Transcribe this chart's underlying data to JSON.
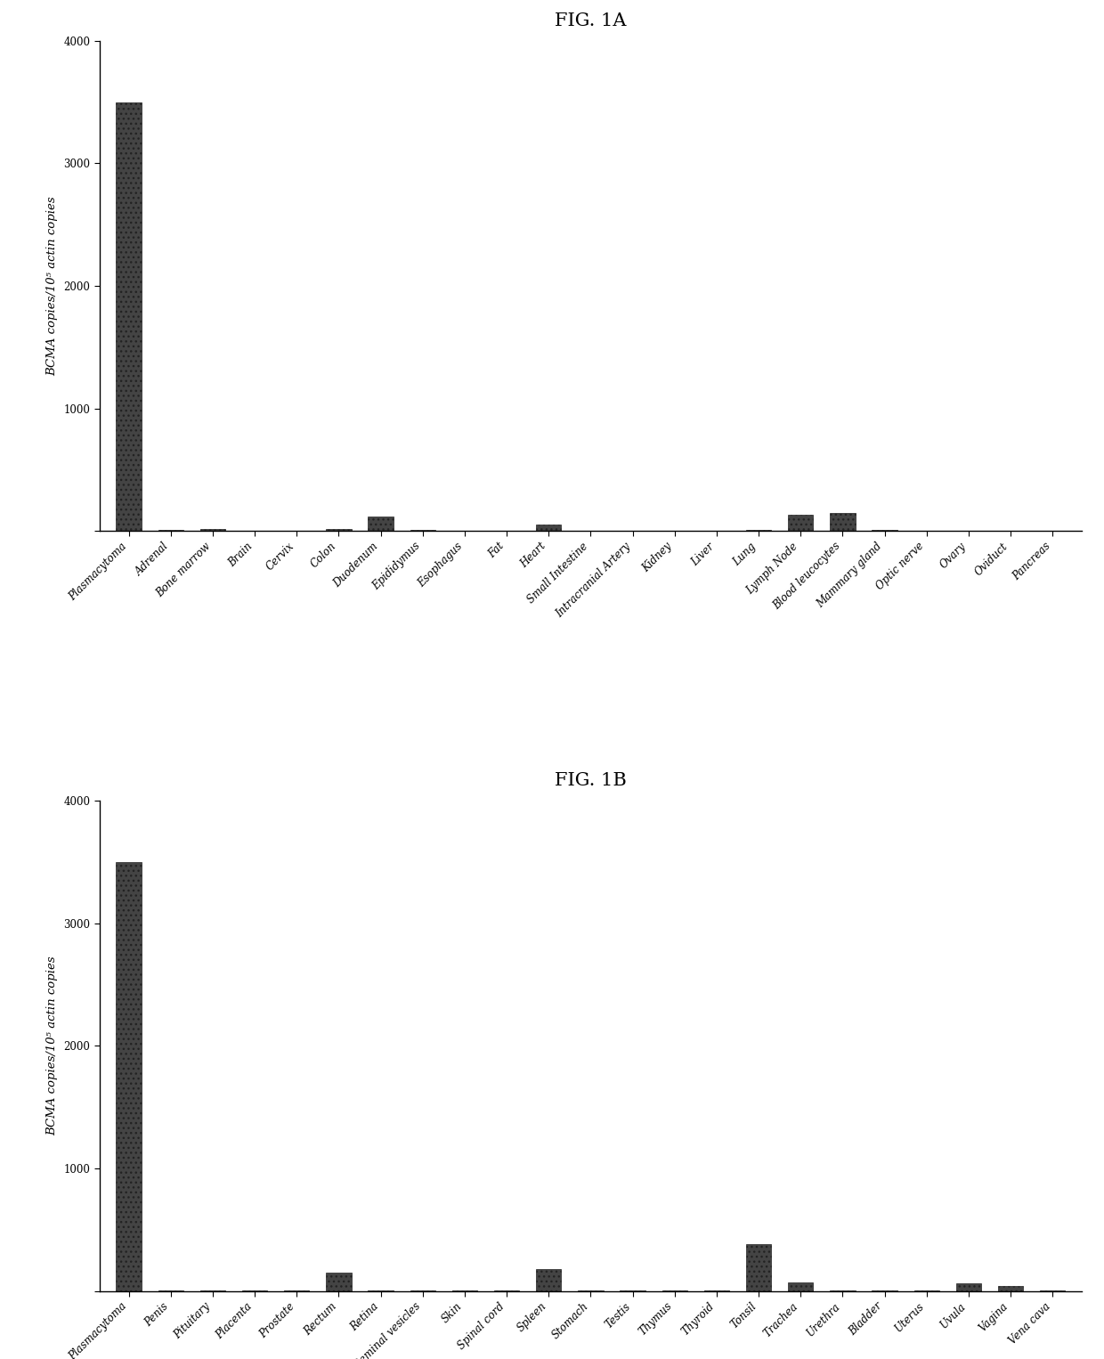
{
  "fig1a_title": "FIG. 1A",
  "fig1b_title": "FIG. 1B",
  "ylabel": "BCMA copies/10⁵ actin copies",
  "ylim": [
    0,
    4000
  ],
  "yticks": [
    0,
    1000,
    2000,
    3000,
    4000
  ],
  "bar_color": "#444444",
  "bar_edgecolor": "#222222",
  "fig1a_categories": [
    "Plasmacytoma",
    "Adrenal",
    "Bone marrow",
    "Brain",
    "Cervix",
    "Colon",
    "Duodenum",
    "Epididymus",
    "Esophagus",
    "Fat",
    "Heart",
    "Small Intestine",
    "Intracranial Artery",
    "Kidney",
    "Liver",
    "Lung",
    "Lymph Node",
    "Blood leucocytes",
    "Mammary gland",
    "Optic nerve",
    "Ovary",
    "Oviduct",
    "Pancreas"
  ],
  "fig1a_values": [
    3500,
    10,
    20,
    5,
    5,
    15,
    120,
    10,
    5,
    5,
    50,
    5,
    5,
    5,
    5,
    10,
    130,
    150,
    10,
    5,
    5,
    5,
    5
  ],
  "fig1b_categories": [
    "Plasmacytoma",
    "Penis",
    "Pituitary",
    "Placenta",
    "Prostate",
    "Rectum",
    "Retina",
    "Seminal vesicles",
    "Skin",
    "Spinal cord",
    "Spleen",
    "Stomach",
    "Testis",
    "Thymus",
    "Thyroid",
    "Tonsil",
    "Trachea",
    "Urethra",
    "Bladder",
    "Uterus",
    "Uvula",
    "Vagina",
    "Vena cava"
  ],
  "fig1b_values": [
    3500,
    5,
    5,
    5,
    5,
    150,
    5,
    5,
    5,
    5,
    180,
    5,
    5,
    5,
    5,
    380,
    70,
    5,
    5,
    5,
    60,
    40,
    5
  ],
  "background_color": "#ffffff",
  "title_fontsize": 15,
  "tick_fontsize": 8.5,
  "ylabel_fontsize": 9.5,
  "fig_width": 12.4,
  "fig_height": 15.26
}
